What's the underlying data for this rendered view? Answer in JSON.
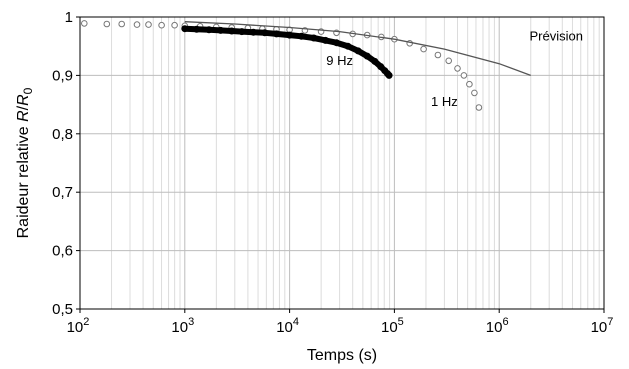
{
  "chart_data": {
    "type": "scatter",
    "xscale": "log",
    "xlim": [
      100,
      10000000
    ],
    "ylim": [
      0.5,
      1.0
    ],
    "grid": true,
    "xlabel": "Temps (s)",
    "ylabel_prefix": "Raideur relative ",
    "ylabel_r": "R",
    "ylabel_slash": "/",
    "ylabel_r0": "R",
    "ylabel_r0_sub": "0",
    "x_ticks": [
      {
        "base": "10",
        "exp": "2",
        "value": 100
      },
      {
        "base": "10",
        "exp": "3",
        "value": 1000
      },
      {
        "base": "10",
        "exp": "4",
        "value": 10000
      },
      {
        "base": "10",
        "exp": "5",
        "value": 100000
      },
      {
        "base": "10",
        "exp": "6",
        "value": 1000000
      },
      {
        "base": "10",
        "exp": "7",
        "value": 10000000
      }
    ],
    "y_ticks": [
      {
        "label": "1",
        "value": 1.0
      },
      {
        "label": "0,9",
        "value": 0.9
      },
      {
        "label": "0,8",
        "value": 0.8
      },
      {
        "label": "0,7",
        "value": 0.7
      },
      {
        "label": "0,6",
        "value": 0.6
      },
      {
        "label": "0,5",
        "value": 0.5
      }
    ],
    "series": [
      {
        "name": "1 Hz",
        "style": "open-circles",
        "points": [
          [
            110,
            0.989
          ],
          [
            180,
            0.988
          ],
          [
            250,
            0.988
          ],
          [
            350,
            0.987
          ],
          [
            450,
            0.987
          ],
          [
            600,
            0.986
          ],
          [
            800,
            0.986
          ],
          [
            1000,
            0.985
          ],
          [
            1400,
            0.984
          ],
          [
            2000,
            0.983
          ],
          [
            2800,
            0.982
          ],
          [
            4000,
            0.981
          ],
          [
            5500,
            0.98
          ],
          [
            7500,
            0.979
          ],
          [
            10000,
            0.978
          ],
          [
            14000,
            0.977
          ],
          [
            20000,
            0.975
          ],
          [
            28000,
            0.973
          ],
          [
            40000,
            0.971
          ],
          [
            55000,
            0.969
          ],
          [
            75000,
            0.966
          ],
          [
            100000,
            0.962
          ],
          [
            140000,
            0.955
          ],
          [
            190000,
            0.945
          ],
          [
            260000,
            0.935
          ],
          [
            330000,
            0.925
          ],
          [
            400000,
            0.912
          ],
          [
            460000,
            0.9
          ],
          [
            520000,
            0.885
          ],
          [
            580000,
            0.87
          ],
          [
            640000,
            0.845
          ]
        ]
      },
      {
        "name": "9 Hz",
        "style": "dense-points",
        "points": [
          [
            1000,
            0.98
          ],
          [
            1300,
            0.979
          ],
          [
            1700,
            0.978
          ],
          [
            2200,
            0.977
          ],
          [
            2800,
            0.976
          ],
          [
            3500,
            0.975
          ],
          [
            4500,
            0.974
          ],
          [
            5800,
            0.973
          ],
          [
            7500,
            0.971
          ],
          [
            10000,
            0.969
          ],
          [
            13000,
            0.967
          ],
          [
            17000,
            0.964
          ],
          [
            22000,
            0.96
          ],
          [
            28000,
            0.956
          ],
          [
            36000,
            0.95
          ],
          [
            45000,
            0.942
          ],
          [
            55000,
            0.933
          ],
          [
            65000,
            0.924
          ],
          [
            74000,
            0.915
          ],
          [
            81000,
            0.908
          ],
          [
            86000,
            0.903
          ],
          [
            89000,
            0.9
          ]
        ]
      },
      {
        "name": "Prévision",
        "style": "line",
        "points": [
          [
            1000,
            0.992
          ],
          [
            3000,
            0.988
          ],
          [
            10000,
            0.982
          ],
          [
            30000,
            0.975
          ],
          [
            100000,
            0.962
          ],
          [
            300000,
            0.945
          ],
          [
            1000000,
            0.92
          ],
          [
            2000000,
            0.9
          ]
        ]
      }
    ],
    "labels": [
      {
        "text": "Prévision",
        "x": 3500000,
        "y": 0.96
      },
      {
        "text": "9 Hz",
        "x": 30000,
        "y": 0.918
      },
      {
        "text": "1 Hz",
        "x": 300000,
        "y": 0.848
      }
    ]
  }
}
